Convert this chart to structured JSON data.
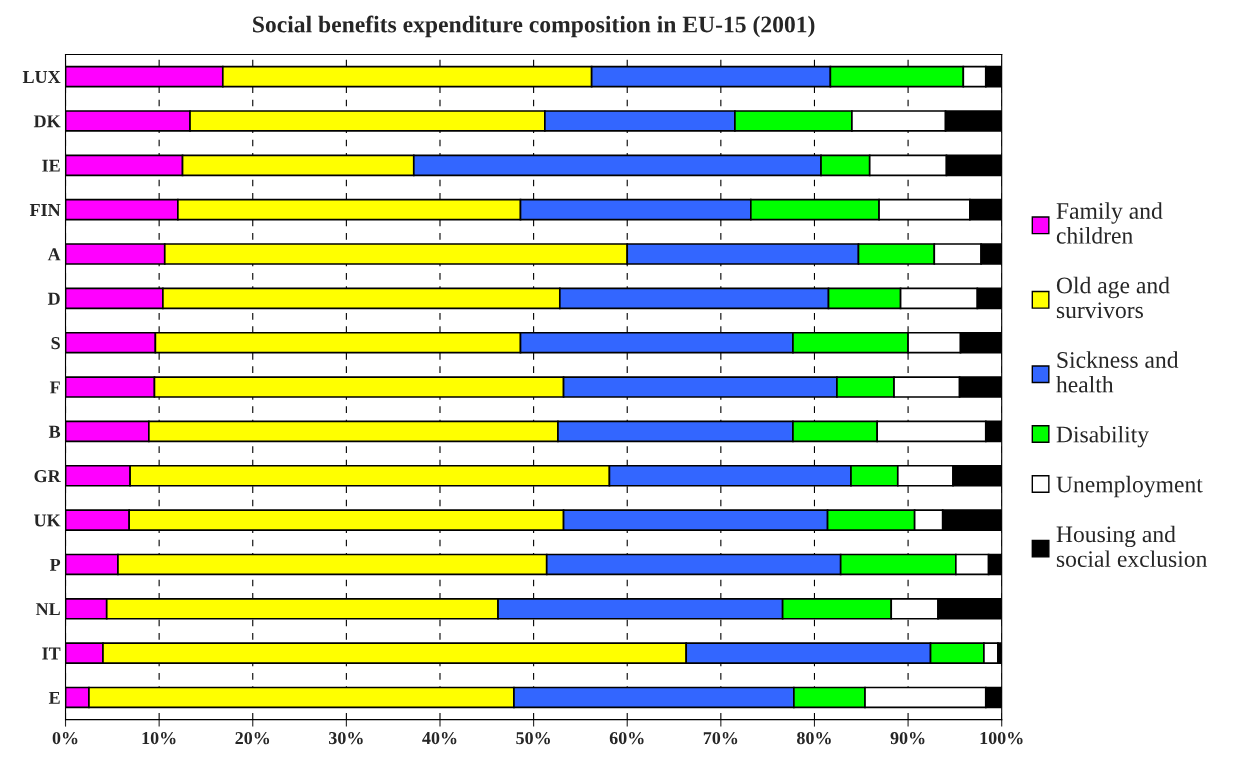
{
  "chart_data": {
    "type": "bar",
    "title": "Social benefits expenditure composition in EU-15 (2001)",
    "orientation": "horizontal",
    "stacked": true,
    "grid": "x",
    "legend": "right",
    "categories": [
      "LUX",
      "DK",
      "IE",
      "FIN",
      "A",
      "D",
      "S",
      "F",
      "B",
      "GR",
      "UK",
      "P",
      "NL",
      "IT",
      "E"
    ],
    "series": [
      {
        "name": "Family and\nchildren",
        "color": "#ff00ff",
        "values": [
          16.8,
          13.3,
          12.5,
          12.0,
          10.6,
          10.4,
          9.6,
          9.5,
          8.9,
          6.9,
          6.8,
          5.6,
          4.4,
          4.0,
          2.5
        ]
      },
      {
        "name": "Old age and\nsurvivors",
        "color": "#ffff00",
        "values": [
          39.4,
          37.9,
          24.7,
          36.6,
          49.4,
          42.4,
          39.0,
          43.7,
          43.7,
          51.2,
          46.4,
          45.8,
          41.8,
          62.3,
          45.4
        ]
      },
      {
        "name": "Sickness and\nhealth",
        "color": "#3366ff",
        "values": [
          25.5,
          20.3,
          43.5,
          24.6,
          24.7,
          28.7,
          29.1,
          29.2,
          25.1,
          25.8,
          28.2,
          31.4,
          30.4,
          26.1,
          29.9
        ]
      },
      {
        "name": "Disability",
        "color": "#00ff00",
        "values": [
          14.2,
          12.5,
          5.2,
          13.7,
          8.1,
          7.7,
          12.3,
          6.1,
          9.0,
          5.0,
          9.3,
          12.3,
          11.6,
          5.7,
          7.6
        ]
      },
      {
        "name": "Unemployment",
        "color": "#ffffff",
        "values": [
          2.4,
          10.0,
          8.2,
          9.7,
          5.0,
          8.2,
          5.6,
          7.0,
          11.6,
          5.9,
          3.0,
          3.5,
          5.0,
          1.5,
          12.9
        ]
      },
      {
        "name": "Housing and\nsocial exclusion",
        "color": "#000000",
        "values": [
          1.7,
          6.0,
          5.9,
          3.4,
          2.2,
          2.6,
          4.4,
          4.5,
          1.7,
          5.2,
          6.3,
          1.4,
          6.8,
          0.4,
          1.7
        ]
      }
    ],
    "xlim": [
      0,
      100
    ],
    "xticks": [
      {
        "value": 0,
        "label": "0%"
      },
      {
        "value": 10,
        "label": "10%"
      },
      {
        "value": 20,
        "label": "20%"
      },
      {
        "value": 30,
        "label": "30%"
      },
      {
        "value": 40,
        "label": "40%"
      },
      {
        "value": 50,
        "label": "50%"
      },
      {
        "value": 60,
        "label": "60%"
      },
      {
        "value": 70,
        "label": "70%"
      },
      {
        "value": 80,
        "label": "80%"
      },
      {
        "value": 90,
        "label": "90%"
      },
      {
        "value": 100,
        "label": "100%"
      }
    ]
  }
}
